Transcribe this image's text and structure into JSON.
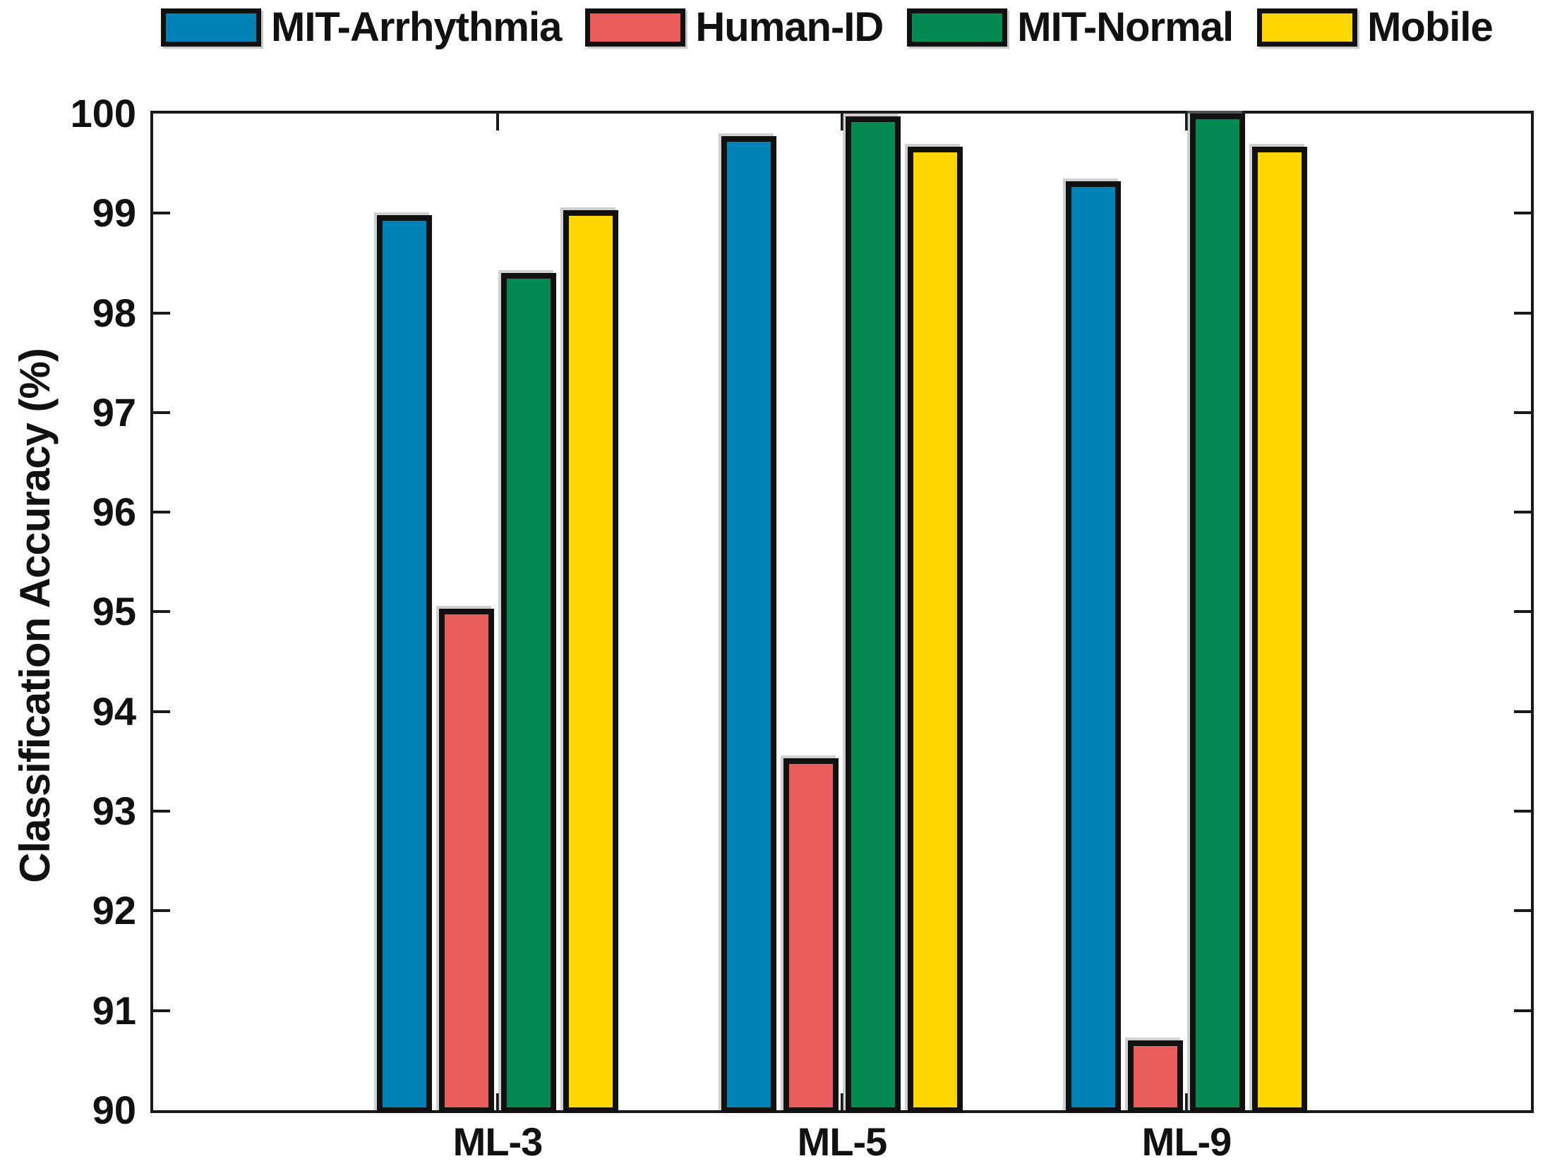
{
  "chart_data": {
    "type": "bar",
    "title": "",
    "xlabel": "",
    "ylabel": "Classification Accuracy (%)",
    "ylim": [
      90,
      100
    ],
    "yticks": [
      90,
      91,
      92,
      93,
      94,
      95,
      96,
      97,
      98,
      99,
      100
    ],
    "grid": false,
    "legend_position": "top",
    "axis_color": "#1a1a1a",
    "bar_border_color": "#111111",
    "categories": [
      "ML-3",
      "ML-5",
      "ML-9"
    ],
    "series": [
      {
        "name": "MIT-Arrhythmia",
        "color": "#0182B5",
        "values": [
          98.98,
          99.77,
          99.32
        ]
      },
      {
        "name": "Human-ID",
        "color": "#E95D5C",
        "values": [
          95.03,
          93.53,
          90.7
        ]
      },
      {
        "name": "MIT-Normal",
        "color": "#038A52",
        "values": [
          98.4,
          99.97,
          100.0
        ]
      },
      {
        "name": "Mobile",
        "color": "#FFD600",
        "values": [
          99.03,
          99.67,
          99.67
        ]
      }
    ]
  }
}
